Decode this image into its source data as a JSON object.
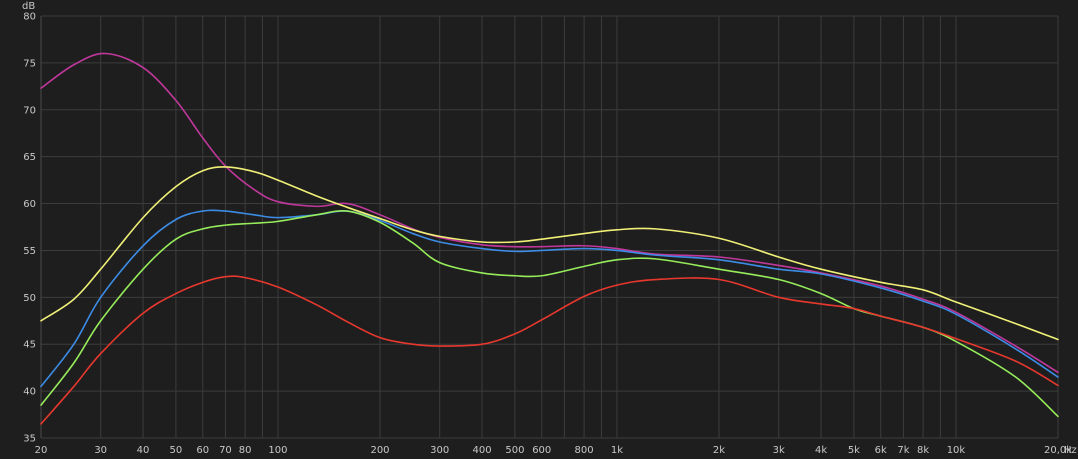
{
  "chart_data": {
    "type": "line",
    "xscale": "log",
    "xunit": "Hz",
    "yunit": "dB",
    "xlim": [
      20,
      20000
    ],
    "ylim": [
      35,
      80
    ],
    "grid": true,
    "colors": {
      "background": "#1e1e1e",
      "grid": "#3c3c3c",
      "text": "#c8c8c8"
    },
    "yticks": [
      {
        "value": 35,
        "label": "35"
      },
      {
        "value": 40,
        "label": "40"
      },
      {
        "value": 45,
        "label": "45"
      },
      {
        "value": 50,
        "label": "50"
      },
      {
        "value": 55,
        "label": "55"
      },
      {
        "value": 60,
        "label": "60"
      },
      {
        "value": 65,
        "label": "65"
      },
      {
        "value": 70,
        "label": "70"
      },
      {
        "value": 75,
        "label": "75"
      },
      {
        "value": 80,
        "label": "80"
      }
    ],
    "xticks": [
      {
        "value": 20,
        "label": "20"
      },
      {
        "value": 30,
        "label": "30"
      },
      {
        "value": 40,
        "label": "40"
      },
      {
        "value": 50,
        "label": "50"
      },
      {
        "value": 60,
        "label": "60"
      },
      {
        "value": 70,
        "label": "70"
      },
      {
        "value": 80,
        "label": "80"
      },
      {
        "value": 100,
        "label": "100"
      },
      {
        "value": 200,
        "label": "200"
      },
      {
        "value": 300,
        "label": "300"
      },
      {
        "value": 400,
        "label": "400"
      },
      {
        "value": 500,
        "label": "500"
      },
      {
        "value": 600,
        "label": "600"
      },
      {
        "value": 800,
        "label": "800"
      },
      {
        "value": 1000,
        "label": "1k"
      },
      {
        "value": 2000,
        "label": "2k"
      },
      {
        "value": 3000,
        "label": "3k"
      },
      {
        "value": 4000,
        "label": "4k"
      },
      {
        "value": 5000,
        "label": "5k"
      },
      {
        "value": 6000,
        "label": "6k"
      },
      {
        "value": 7000,
        "label": "7k"
      },
      {
        "value": 8000,
        "label": "8k"
      },
      {
        "value": 10000,
        "label": "10k"
      },
      {
        "value": 20000,
        "label": "20,0k"
      }
    ],
    "minor_x": [
      90,
      700,
      900,
      9000
    ],
    "series": [
      {
        "color": "#c0389c",
        "points": [
          [
            20,
            72.3
          ],
          [
            25,
            74.8
          ],
          [
            31,
            76
          ],
          [
            40,
            74.5
          ],
          [
            50,
            71
          ],
          [
            60,
            67
          ],
          [
            70,
            64
          ],
          [
            85,
            61.5
          ],
          [
            100,
            60.2
          ],
          [
            130,
            59.7
          ],
          [
            160,
            60
          ],
          [
            200,
            58.8
          ],
          [
            250,
            57.3
          ],
          [
            300,
            56.4
          ],
          [
            400,
            55.6
          ],
          [
            500,
            55.4
          ],
          [
            600,
            55.4
          ],
          [
            800,
            55.5
          ],
          [
            1000,
            55.2
          ],
          [
            1300,
            54.6
          ],
          [
            2000,
            54.3
          ],
          [
            3000,
            53.4
          ],
          [
            4000,
            52.6
          ],
          [
            6000,
            51.2
          ],
          [
            8000,
            49.8
          ],
          [
            10000,
            48.4
          ],
          [
            15000,
            44.8
          ],
          [
            20000,
            42
          ]
        ]
      },
      {
        "color": "#3c8ce6",
        "points": [
          [
            20,
            40.5
          ],
          [
            25,
            45
          ],
          [
            30,
            50
          ],
          [
            40,
            55.5
          ],
          [
            50,
            58.3
          ],
          [
            60,
            59.2
          ],
          [
            70,
            59.2
          ],
          [
            85,
            58.8
          ],
          [
            100,
            58.5
          ],
          [
            130,
            58.8
          ],
          [
            160,
            59.2
          ],
          [
            200,
            58.2
          ],
          [
            250,
            56.8
          ],
          [
            300,
            55.9
          ],
          [
            400,
            55.2
          ],
          [
            500,
            54.9
          ],
          [
            600,
            55
          ],
          [
            800,
            55.2
          ],
          [
            1000,
            55
          ],
          [
            1300,
            54.5
          ],
          [
            2000,
            54
          ],
          [
            3000,
            53
          ],
          [
            4000,
            52.5
          ],
          [
            6000,
            51
          ],
          [
            8000,
            49.6
          ],
          [
            10000,
            48.2
          ],
          [
            15000,
            44.5
          ],
          [
            20000,
            41.5
          ]
        ]
      },
      {
        "color": "#96ec5a",
        "points": [
          [
            20,
            38.5
          ],
          [
            25,
            43
          ],
          [
            30,
            47.5
          ],
          [
            40,
            53
          ],
          [
            50,
            56.2
          ],
          [
            60,
            57.3
          ],
          [
            70,
            57.7
          ],
          [
            85,
            57.9
          ],
          [
            100,
            58.1
          ],
          [
            130,
            58.8
          ],
          [
            160,
            59.2
          ],
          [
            200,
            58
          ],
          [
            250,
            55.8
          ],
          [
            300,
            53.7
          ],
          [
            400,
            52.6
          ],
          [
            500,
            52.3
          ],
          [
            600,
            52.3
          ],
          [
            800,
            53.3
          ],
          [
            1000,
            54
          ],
          [
            1300,
            54.1
          ],
          [
            2000,
            53
          ],
          [
            3000,
            51.9
          ],
          [
            4000,
            50.4
          ],
          [
            5000,
            48.8
          ],
          [
            6000,
            48
          ],
          [
            8000,
            46.8
          ],
          [
            10000,
            45.3
          ],
          [
            15000,
            41.5
          ],
          [
            20000,
            37.3
          ]
        ]
      },
      {
        "color": "#e8382e",
        "points": [
          [
            20,
            36.5
          ],
          [
            25,
            40.5
          ],
          [
            30,
            44
          ],
          [
            40,
            48.3
          ],
          [
            50,
            50.4
          ],
          [
            60,
            51.6
          ],
          [
            70,
            52.2
          ],
          [
            80,
            52.1
          ],
          [
            100,
            51.1
          ],
          [
            130,
            49.2
          ],
          [
            160,
            47.4
          ],
          [
            200,
            45.7
          ],
          [
            250,
            45
          ],
          [
            300,
            44.8
          ],
          [
            400,
            45
          ],
          [
            500,
            46.1
          ],
          [
            600,
            47.6
          ],
          [
            800,
            50.1
          ],
          [
            1000,
            51.3
          ],
          [
            1300,
            51.9
          ],
          [
            2000,
            51.9
          ],
          [
            3000,
            50
          ],
          [
            4000,
            49.3
          ],
          [
            5000,
            48.8
          ],
          [
            6000,
            48
          ],
          [
            8000,
            46.8
          ],
          [
            10000,
            45.6
          ],
          [
            15000,
            43.2
          ],
          [
            20000,
            40.6
          ]
        ]
      },
      {
        "color": "#f0f078",
        "points": [
          [
            20,
            47.5
          ],
          [
            25,
            49.8
          ],
          [
            30,
            53
          ],
          [
            40,
            58.5
          ],
          [
            50,
            61.8
          ],
          [
            60,
            63.5
          ],
          [
            70,
            63.9
          ],
          [
            85,
            63.4
          ],
          [
            100,
            62.5
          ],
          [
            130,
            60.8
          ],
          [
            160,
            59.6
          ],
          [
            200,
            58.4
          ],
          [
            250,
            57.2
          ],
          [
            300,
            56.5
          ],
          [
            400,
            55.9
          ],
          [
            500,
            55.9
          ],
          [
            600,
            56.2
          ],
          [
            800,
            56.8
          ],
          [
            1000,
            57.2
          ],
          [
            1300,
            57.3
          ],
          [
            2000,
            56.3
          ],
          [
            3000,
            54.3
          ],
          [
            4000,
            53
          ],
          [
            6000,
            51.6
          ],
          [
            8000,
            50.8
          ],
          [
            10000,
            49.5
          ],
          [
            15000,
            47.2
          ],
          [
            20000,
            45.5
          ]
        ]
      }
    ]
  }
}
